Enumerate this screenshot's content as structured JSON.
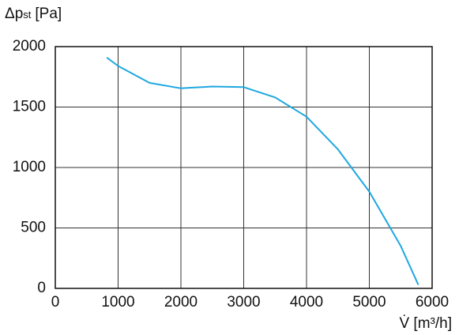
{
  "chart_data": {
    "type": "line",
    "y_label": "Δp",
    "y_label_sub": "st",
    "y_label_unit": "[Pa]",
    "x_label": "V̇ [m³/h]",
    "x": [
      820,
      1000,
      1500,
      2000,
      2500,
      3000,
      3500,
      4000,
      4500,
      5000,
      5500,
      5780
    ],
    "series": [
      {
        "color": "#1ea8e0",
        "values": [
          1910,
          1840,
          1700,
          1655,
          1670,
          1665,
          1580,
          1420,
          1150,
          800,
          350,
          30
        ]
      }
    ],
    "xlim": [
      0,
      6000
    ],
    "xticks": [
      0,
      1000,
      2000,
      3000,
      4000,
      5000,
      6000
    ],
    "ylim": [
      0,
      2000
    ],
    "yticks": [
      0,
      500,
      1000,
      1500,
      2000
    ],
    "grid": true
  }
}
